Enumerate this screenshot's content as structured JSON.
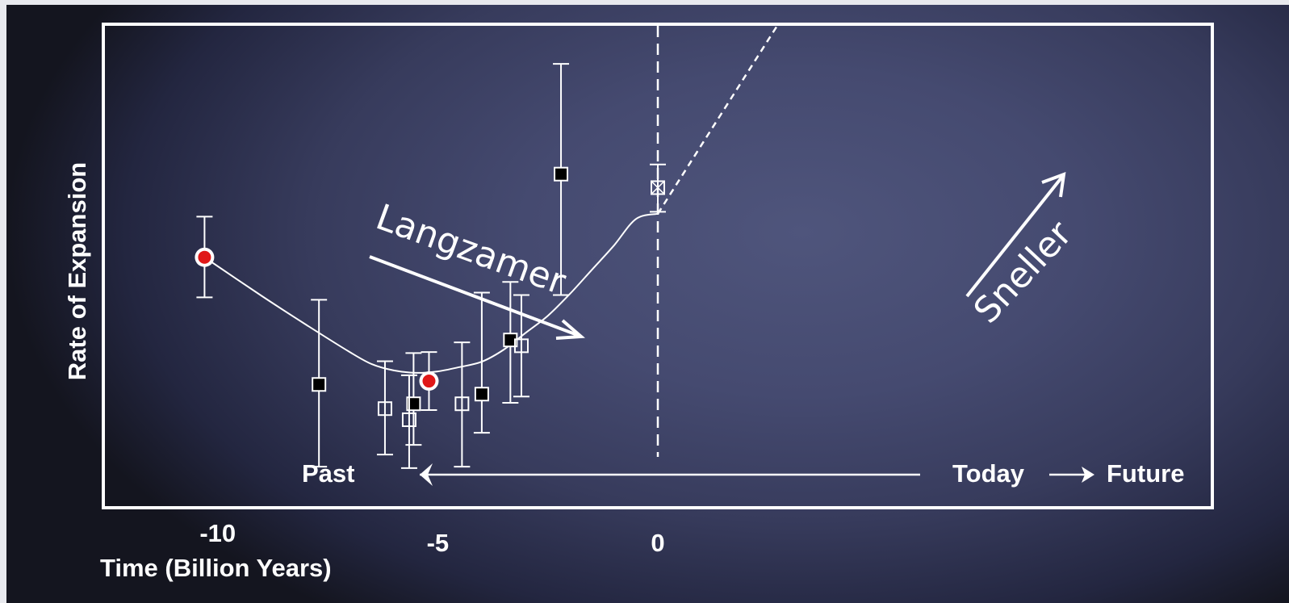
{
  "chart_data": {
    "type": "scatter",
    "title": "",
    "xlabel": "Time (Billion Years)",
    "ylabel": "Rate of Expansion",
    "xlim": [
      -12.6,
      12.6
    ],
    "ylim": [
      0,
      10
    ],
    "xticks": [
      -10,
      -5,
      0
    ],
    "xtick_labels": [
      "-10",
      "-5",
      "0"
    ],
    "grid": false,
    "series": [
      {
        "marker": "red-circle",
        "points": [
          {
            "x": -10.3,
            "y": 5.18,
            "err_low": 0.83,
            "err_high": 0.84
          },
          {
            "x": -5.2,
            "y": 2.62,
            "err_low": 0.6,
            "err_high": 0.6
          }
        ]
      },
      {
        "marker": "filled-square",
        "points": [
          {
            "x": -7.7,
            "y": 2.55,
            "err_low": 1.7,
            "err_high": 1.75
          },
          {
            "x": -5.55,
            "y": 2.15,
            "err_low": 0.85,
            "err_high": 1.05
          },
          {
            "x": -4.0,
            "y": 2.35,
            "err_low": 0.8,
            "err_high": 2.1
          },
          {
            "x": -3.35,
            "y": 3.47,
            "err_low": 1.3,
            "err_high": 1.2
          },
          {
            "x": -2.2,
            "y": 6.9,
            "err_low": 2.5,
            "err_high": 2.28
          }
        ]
      },
      {
        "marker": "open-square",
        "points": [
          {
            "x": -6.2,
            "y": 2.05,
            "err_low": 0.95,
            "err_high": 0.98
          },
          {
            "x": -5.65,
            "y": 1.82,
            "err_low": 1.0,
            "err_high": 0.92
          },
          {
            "x": -4.45,
            "y": 2.15,
            "err_low": 1.3,
            "err_high": 1.27
          },
          {
            "x": -3.1,
            "y": 3.35,
            "err_low": 1.05,
            "err_high": 1.05
          }
        ]
      },
      {
        "marker": "crossed-square",
        "points": [
          {
            "x": 0.0,
            "y": 6.62,
            "err_low": 0.5,
            "err_high": 0.48
          }
        ]
      }
    ],
    "curve": {
      "x": [
        -10.3,
        -9.0,
        -8.0,
        -7.0,
        -6.5,
        -6.0,
        -5.5,
        -5.0,
        -4.5,
        -4.0,
        -3.5,
        -3.0,
        -2.5,
        -2.0,
        -1.5,
        -1.0,
        -0.5,
        0.0
      ],
      "y": [
        5.18,
        4.38,
        3.79,
        3.22,
        2.97,
        2.84,
        2.79,
        2.82,
        2.91,
        3.02,
        3.27,
        3.62,
        3.97,
        4.42,
        4.92,
        5.42,
        5.97,
        6.08
      ]
    },
    "future_trend": {
      "x": [
        0.0,
        2.7
      ],
      "y": [
        6.08,
        9.95
      ],
      "style": "dashed"
    },
    "today_line_x": 0,
    "annotations": {
      "slower": "Langzamer",
      "faster": "Sneller",
      "past": "Past",
      "today": "Today",
      "future": "Future"
    }
  }
}
